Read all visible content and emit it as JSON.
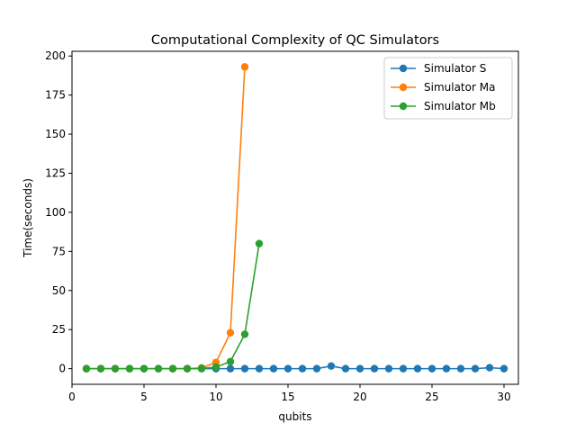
{
  "chart_data": {
    "type": "line",
    "title": "Computational Complexity of QC Simulators",
    "xlabel": "qubits",
    "ylabel": "Time(seconds)",
    "xlim": [
      0,
      31
    ],
    "ylim": [
      -10,
      203
    ],
    "xticks": [
      0,
      5,
      10,
      15,
      20,
      25,
      30
    ],
    "yticks": [
      0,
      25,
      50,
      75,
      100,
      125,
      150,
      175,
      200
    ],
    "grid": false,
    "legend_position": "top-right",
    "series": [
      {
        "name": "Simulator S",
        "color": "#1f77b4",
        "x": [
          1,
          2,
          3,
          4,
          5,
          6,
          7,
          8,
          9,
          10,
          11,
          12,
          13,
          14,
          15,
          16,
          17,
          18,
          19,
          20,
          21,
          22,
          23,
          24,
          25,
          26,
          27,
          28,
          29,
          30
        ],
        "y": [
          0,
          0,
          0,
          0,
          0,
          0,
          0,
          0,
          0,
          0,
          0,
          0,
          0,
          0,
          0,
          0,
          0,
          1.7,
          0,
          0,
          0,
          0,
          0,
          0,
          0,
          0,
          0,
          0,
          0.6,
          0
        ]
      },
      {
        "name": "Simulator Ma",
        "color": "#ff7f0e",
        "x": [
          1,
          2,
          3,
          4,
          5,
          6,
          7,
          8,
          9,
          10,
          11,
          12
        ],
        "y": [
          0,
          0,
          0,
          0,
          0,
          0,
          0,
          0,
          0.5,
          4,
          23,
          193
        ]
      },
      {
        "name": "Simulator Mb",
        "color": "#2ca02c",
        "x": [
          1,
          2,
          3,
          4,
          5,
          6,
          7,
          8,
          9,
          10,
          11,
          12,
          13
        ],
        "y": [
          0,
          0,
          0,
          0,
          0,
          0,
          0,
          0,
          0.2,
          1,
          4.5,
          22,
          80
        ]
      }
    ]
  }
}
